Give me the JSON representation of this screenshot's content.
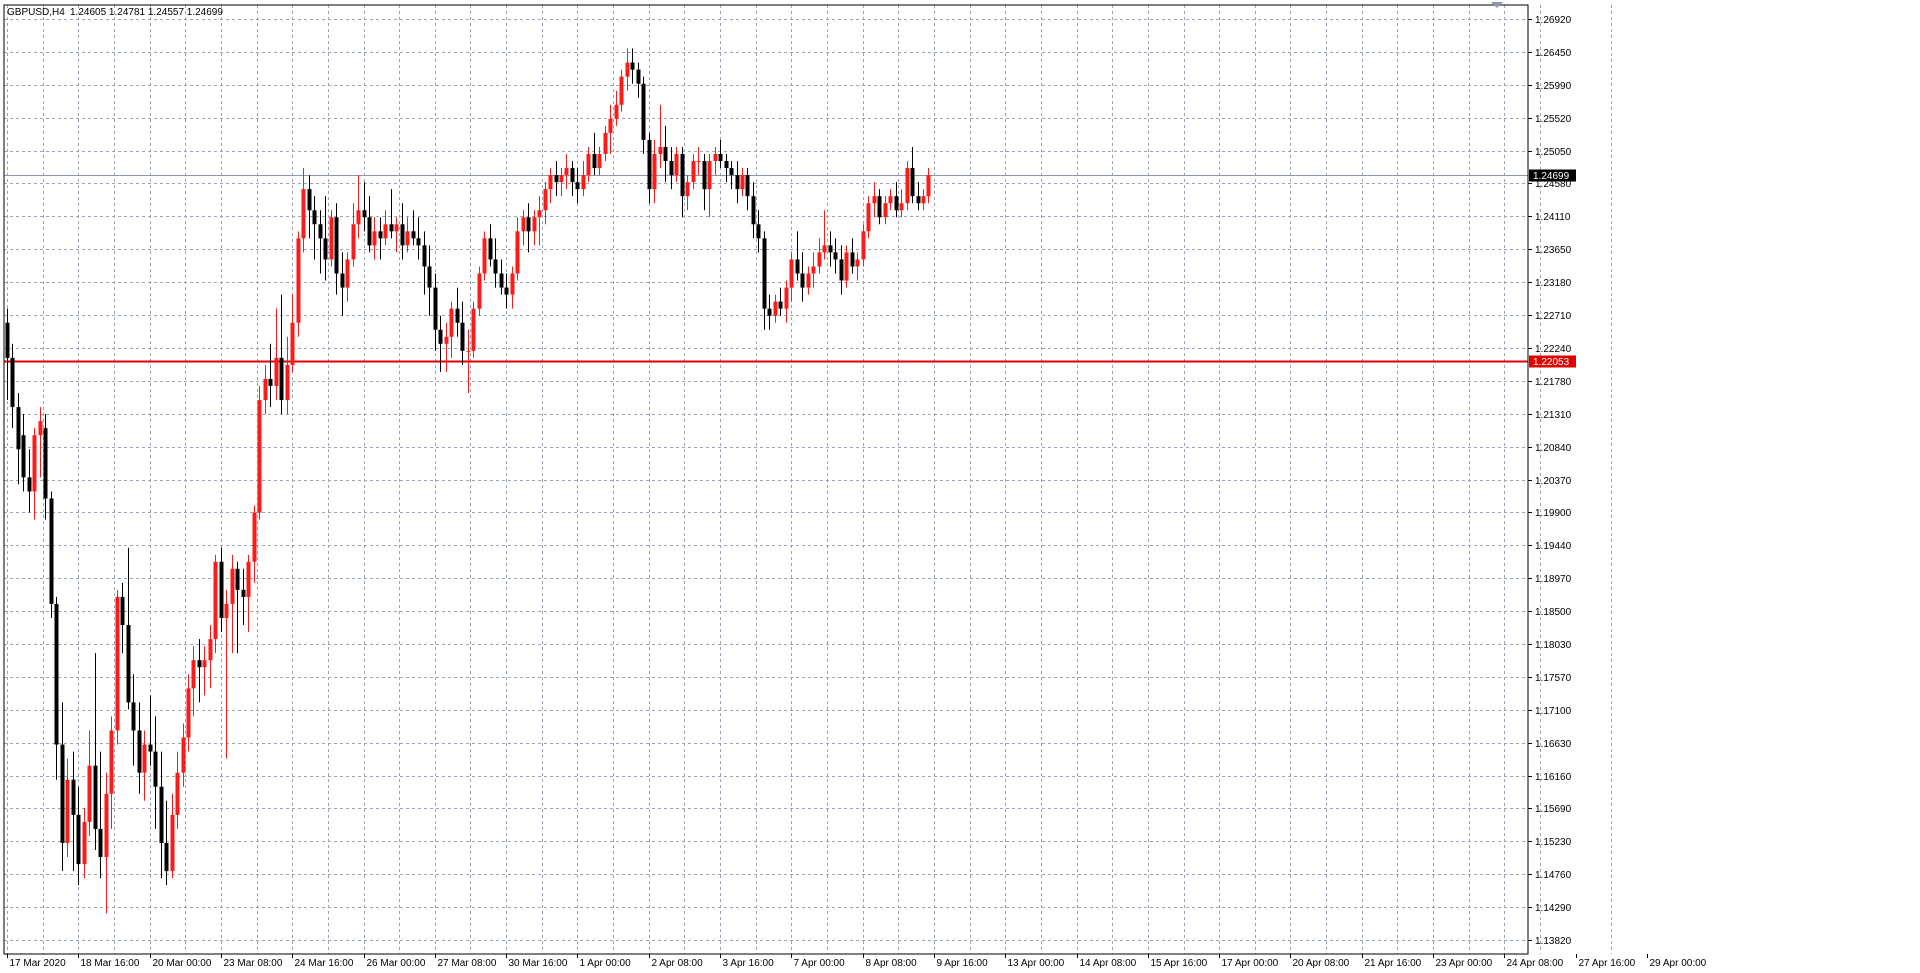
{
  "header": {
    "symbol": "GBPUSD,H4",
    "ohlc": "1.24605 1.24781 1.24557 1.24699"
  },
  "colors": {
    "background": "#ffffff",
    "grid": "#9aa4b4",
    "axis": "#000000",
    "bull": "#ff1a1a",
    "bear": "#000000",
    "level_line": "#e00000",
    "price_line": "#8c96a8"
  },
  "chart_data": {
    "type": "candlestick",
    "ylim": [
      1.1382,
      1.2692
    ],
    "grid": true,
    "y_ticks": [
      "1.26920",
      "1.26450",
      "1.25990",
      "1.25520",
      "1.25050",
      "1.24580",
      "1.24110",
      "1.23650",
      "1.23180",
      "1.22710",
      "1.22240",
      "1.21780",
      "1.21310",
      "1.20840",
      "1.20370",
      "1.19900",
      "1.19440",
      "1.18970",
      "1.18500",
      "1.18030",
      "1.17570",
      "1.17100",
      "1.16630",
      "1.16160",
      "1.15690",
      "1.15230",
      "1.14760",
      "1.14290",
      "1.13820"
    ],
    "x_labels": [
      {
        "index": 0,
        "text": "17 Mar 2020"
      },
      {
        "index": 13,
        "text": "18 Mar 16:00"
      },
      {
        "index": 26,
        "text": "20 Mar 00:00"
      },
      {
        "index": 39,
        "text": "23 Mar 08:00"
      },
      {
        "index": 52,
        "text": "24 Mar 16:00"
      },
      {
        "index": 65,
        "text": "26 Mar 00:00"
      },
      {
        "index": 78,
        "text": "27 Mar 08:00"
      },
      {
        "index": 91,
        "text": "30 Mar 16:00"
      },
      {
        "index": 104,
        "text": "1 Apr 00:00"
      },
      {
        "index": 117,
        "text": "2 Apr 08:00"
      },
      {
        "index": 130,
        "text": "3 Apr 16:00"
      },
      {
        "index": 143,
        "text": "7 Apr 00:00"
      },
      {
        "index": 156,
        "text": "8 Apr 08:00"
      },
      {
        "index": 169,
        "text": "9 Apr 16:00"
      },
      {
        "index": 182,
        "text": "13 Apr 00:00"
      },
      {
        "index": 195,
        "text": "14 Apr 08:00"
      },
      {
        "index": 208,
        "text": "15 Apr 16:00"
      },
      {
        "index": 221,
        "text": "17 Apr 00:00"
      },
      {
        "index": 234,
        "text": "20 Apr 08:00"
      },
      {
        "index": 247,
        "text": "21 Apr 16:00"
      },
      {
        "index": 260,
        "text": "23 Apr 00:00"
      },
      {
        "index": 273,
        "text": "24 Apr 08:00"
      },
      {
        "index": 286,
        "text": "27 Apr 16:00"
      },
      {
        "index": 299,
        "text": "29 Apr 00:00"
      }
    ],
    "horizontal_level": {
      "price": 1.22053,
      "label": "1.22053"
    },
    "current_price": {
      "price": 1.24699,
      "label": "1.24699"
    },
    "ohlc": [
      [
        1.226,
        1.228,
        1.215,
        1.221
      ],
      [
        1.221,
        1.223,
        1.211,
        1.214
      ],
      [
        1.214,
        1.216,
        1.203,
        1.208
      ],
      [
        1.21,
        1.213,
        1.202,
        1.204
      ],
      [
        1.204,
        1.208,
        1.199,
        1.202
      ],
      [
        1.202,
        1.211,
        1.198,
        1.21
      ],
      [
        1.21,
        1.214,
        1.204,
        1.212
      ],
      [
        1.211,
        1.213,
        1.198,
        1.201
      ],
      [
        1.201,
        1.202,
        1.184,
        1.186
      ],
      [
        1.186,
        1.187,
        1.161,
        1.166
      ],
      [
        1.166,
        1.172,
        1.148,
        1.152
      ],
      [
        1.152,
        1.164,
        1.15,
        1.161
      ],
      [
        1.161,
        1.165,
        1.148,
        1.156
      ],
      [
        1.156,
        1.16,
        1.146,
        1.149
      ],
      [
        1.149,
        1.157,
        1.147,
        1.155
      ],
      [
        1.155,
        1.168,
        1.153,
        1.163
      ],
      [
        1.163,
        1.179,
        1.151,
        1.154
      ],
      [
        1.154,
        1.165,
        1.147,
        1.15
      ],
      [
        1.15,
        1.162,
        1.142,
        1.159
      ],
      [
        1.159,
        1.17,
        1.154,
        1.168
      ],
      [
        1.168,
        1.188,
        1.166,
        1.187
      ],
      [
        1.187,
        1.189,
        1.179,
        1.183
      ],
      [
        1.183,
        1.194,
        1.171,
        1.172
      ],
      [
        1.172,
        1.176,
        1.163,
        1.168
      ],
      [
        1.168,
        1.172,
        1.159,
        1.162
      ],
      [
        1.162,
        1.168,
        1.158,
        1.166
      ],
      [
        1.166,
        1.173,
        1.163,
        1.165
      ],
      [
        1.165,
        1.17,
        1.154,
        1.16
      ],
      [
        1.16,
        1.165,
        1.147,
        1.152
      ],
      [
        1.152,
        1.158,
        1.146,
        1.148
      ],
      [
        1.148,
        1.159,
        1.147,
        1.156
      ],
      [
        1.156,
        1.165,
        1.154,
        1.162
      ],
      [
        1.162,
        1.169,
        1.16,
        1.167
      ],
      [
        1.167,
        1.176,
        1.165,
        1.174
      ],
      [
        1.174,
        1.18,
        1.17,
        1.178
      ],
      [
        1.178,
        1.181,
        1.172,
        1.177
      ],
      [
        1.177,
        1.18,
        1.173,
        1.178
      ],
      [
        1.178,
        1.183,
        1.174,
        1.181
      ],
      [
        1.181,
        1.193,
        1.179,
        1.192
      ],
      [
        1.192,
        1.194,
        1.182,
        1.184
      ],
      [
        1.184,
        1.188,
        1.164,
        1.186
      ],
      [
        1.186,
        1.193,
        1.179,
        1.191
      ],
      [
        1.191,
        1.192,
        1.179,
        1.188
      ],
      [
        1.188,
        1.191,
        1.183,
        1.187
      ],
      [
        1.187,
        1.193,
        1.182,
        1.192
      ],
      [
        1.192,
        1.2,
        1.189,
        1.199
      ],
      [
        1.199,
        1.217,
        1.198,
        1.215
      ],
      [
        1.215,
        1.22,
        1.213,
        1.218
      ],
      [
        1.218,
        1.223,
        1.214,
        1.217
      ],
      [
        1.217,
        1.228,
        1.215,
        1.221
      ],
      [
        1.221,
        1.23,
        1.213,
        1.215
      ],
      [
        1.215,
        1.224,
        1.213,
        1.22
      ],
      [
        1.22,
        1.23,
        1.219,
        1.226
      ],
      [
        1.226,
        1.239,
        1.224,
        1.238
      ],
      [
        1.238,
        1.248,
        1.236,
        1.245
      ],
      [
        1.245,
        1.247,
        1.238,
        1.242
      ],
      [
        1.242,
        1.244,
        1.235,
        1.24
      ],
      [
        1.24,
        1.242,
        1.233,
        1.238
      ],
      [
        1.238,
        1.244,
        1.232,
        1.235
      ],
      [
        1.235,
        1.242,
        1.234,
        1.241
      ],
      [
        1.241,
        1.243,
        1.23,
        1.233
      ],
      [
        1.233,
        1.236,
        1.227,
        1.231
      ],
      [
        1.231,
        1.236,
        1.229,
        1.235
      ],
      [
        1.235,
        1.243,
        1.234,
        1.24
      ],
      [
        1.24,
        1.247,
        1.238,
        1.242
      ],
      [
        1.242,
        1.246,
        1.239,
        1.241
      ],
      [
        1.241,
        1.244,
        1.236,
        1.237
      ],
      [
        1.237,
        1.241,
        1.235,
        1.239
      ],
      [
        1.239,
        1.241,
        1.235,
        1.238
      ],
      [
        1.238,
        1.242,
        1.237,
        1.24
      ],
      [
        1.24,
        1.245,
        1.238,
        1.239
      ],
      [
        1.239,
        1.241,
        1.236,
        1.24
      ],
      [
        1.24,
        1.243,
        1.235,
        1.237
      ],
      [
        1.237,
        1.241,
        1.236,
        1.239
      ],
      [
        1.239,
        1.242,
        1.237,
        1.238
      ],
      [
        1.238,
        1.241,
        1.235,
        1.237
      ],
      [
        1.237,
        1.239,
        1.23,
        1.234
      ],
      [
        1.234,
        1.237,
        1.227,
        1.231
      ],
      [
        1.231,
        1.233,
        1.222,
        1.225
      ],
      [
        1.225,
        1.227,
        1.219,
        1.223
      ],
      [
        1.223,
        1.226,
        1.219,
        1.224
      ],
      [
        1.224,
        1.229,
        1.221,
        1.228
      ],
      [
        1.228,
        1.231,
        1.224,
        1.226
      ],
      [
        1.226,
        1.229,
        1.22,
        1.222
      ],
      [
        1.222,
        1.225,
        1.216,
        1.222
      ],
      [
        1.222,
        1.229,
        1.221,
        1.228
      ],
      [
        1.228,
        1.234,
        1.227,
        1.233
      ],
      [
        1.233,
        1.239,
        1.232,
        1.238
      ],
      [
        1.238,
        1.24,
        1.234,
        1.235
      ],
      [
        1.235,
        1.238,
        1.231,
        1.233
      ],
      [
        1.233,
        1.235,
        1.23,
        1.231
      ],
      [
        1.231,
        1.233,
        1.228,
        1.23
      ],
      [
        1.23,
        1.234,
        1.228,
        1.233
      ],
      [
        1.233,
        1.241,
        1.232,
        1.239
      ],
      [
        1.239,
        1.242,
        1.237,
        1.241
      ],
      [
        1.241,
        1.243,
        1.236,
        1.239
      ],
      [
        1.239,
        1.242,
        1.237,
        1.241
      ],
      [
        1.241,
        1.244,
        1.237,
        1.242
      ],
      [
        1.242,
        1.246,
        1.24,
        1.245
      ],
      [
        1.245,
        1.248,
        1.243,
        1.247
      ],
      [
        1.247,
        1.249,
        1.244,
        1.246
      ],
      [
        1.246,
        1.248,
        1.244,
        1.247
      ],
      [
        1.247,
        1.25,
        1.245,
        1.248
      ],
      [
        1.248,
        1.249,
        1.244,
        1.246
      ],
      [
        1.246,
        1.248,
        1.243,
        1.245
      ],
      [
        1.245,
        1.249,
        1.244,
        1.247
      ],
      [
        1.247,
        1.251,
        1.246,
        1.25
      ],
      [
        1.25,
        1.253,
        1.247,
        1.248
      ],
      [
        1.248,
        1.251,
        1.247,
        1.25
      ],
      [
        1.25,
        1.254,
        1.249,
        1.253
      ],
      [
        1.253,
        1.257,
        1.25,
        1.255
      ],
      [
        1.255,
        1.259,
        1.254,
        1.257
      ],
      [
        1.257,
        1.262,
        1.256,
        1.261
      ],
      [
        1.261,
        1.265,
        1.259,
        1.263
      ],
      [
        1.263,
        1.265,
        1.26,
        1.262
      ],
      [
        1.262,
        1.263,
        1.258,
        1.26
      ],
      [
        1.26,
        1.261,
        1.25,
        1.252
      ],
      [
        1.252,
        1.253,
        1.243,
        1.245
      ],
      [
        1.245,
        1.252,
        1.243,
        1.25
      ],
      [
        1.25,
        1.257,
        1.248,
        1.251
      ],
      [
        1.251,
        1.254,
        1.246,
        1.249
      ],
      [
        1.249,
        1.251,
        1.245,
        1.247
      ],
      [
        1.247,
        1.251,
        1.246,
        1.25
      ],
      [
        1.25,
        1.251,
        1.241,
        1.244
      ],
      [
        1.244,
        1.247,
        1.242,
        1.246
      ],
      [
        1.246,
        1.25,
        1.245,
        1.249
      ],
      [
        1.249,
        1.251,
        1.247,
        1.249
      ],
      [
        1.249,
        1.25,
        1.242,
        1.245
      ],
      [
        1.245,
        1.25,
        1.241,
        1.249
      ],
      [
        1.249,
        1.251,
        1.247,
        1.25
      ],
      [
        1.25,
        1.252,
        1.248,
        1.249
      ],
      [
        1.249,
        1.25,
        1.246,
        1.248
      ],
      [
        1.248,
        1.249,
        1.245,
        1.247
      ],
      [
        1.247,
        1.249,
        1.243,
        1.245
      ],
      [
        1.245,
        1.248,
        1.244,
        1.247
      ],
      [
        1.247,
        1.248,
        1.242,
        1.244
      ],
      [
        1.244,
        1.246,
        1.238,
        1.24
      ],
      [
        1.24,
        1.242,
        1.236,
        1.238
      ],
      [
        1.238,
        1.239,
        1.225,
        1.228
      ],
      [
        1.228,
        1.23,
        1.225,
        1.227
      ],
      [
        1.227,
        1.23,
        1.226,
        1.229
      ],
      [
        1.229,
        1.231,
        1.227,
        1.228
      ],
      [
        1.228,
        1.232,
        1.226,
        1.231
      ],
      [
        1.231,
        1.236,
        1.229,
        1.235
      ],
      [
        1.235,
        1.239,
        1.232,
        1.233
      ],
      [
        1.233,
        1.236,
        1.229,
        1.231
      ],
      [
        1.231,
        1.234,
        1.23,
        1.233
      ],
      [
        1.233,
        1.236,
        1.231,
        1.234
      ],
      [
        1.234,
        1.238,
        1.233,
        1.236
      ],
      [
        1.236,
        1.242,
        1.235,
        1.237
      ],
      [
        1.237,
        1.239,
        1.234,
        1.236
      ],
      [
        1.236,
        1.238,
        1.233,
        1.235
      ],
      [
        1.235,
        1.237,
        1.23,
        1.232
      ],
      [
        1.232,
        1.237,
        1.231,
        1.236
      ],
      [
        1.236,
        1.238,
        1.233,
        1.234
      ],
      [
        1.234,
        1.236,
        1.232,
        1.235
      ],
      [
        1.235,
        1.24,
        1.234,
        1.239
      ],
      [
        1.239,
        1.244,
        1.238,
        1.243
      ],
      [
        1.243,
        1.246,
        1.241,
        1.244
      ],
      [
        1.244,
        1.245,
        1.24,
        1.241
      ],
      [
        1.241,
        1.244,
        1.24,
        1.243
      ],
      [
        1.243,
        1.245,
        1.242,
        1.244
      ],
      [
        1.244,
        1.246,
        1.241,
        1.242
      ],
      [
        1.242,
        1.245,
        1.241,
        1.243
      ],
      [
        1.243,
        1.249,
        1.242,
        1.248
      ],
      [
        1.248,
        1.251,
        1.243,
        1.244
      ],
      [
        1.244,
        1.246,
        1.242,
        1.243
      ],
      [
        1.243,
        1.245,
        1.242,
        1.244
      ],
      [
        1.244,
        1.248,
        1.243,
        1.247
      ]
    ]
  }
}
